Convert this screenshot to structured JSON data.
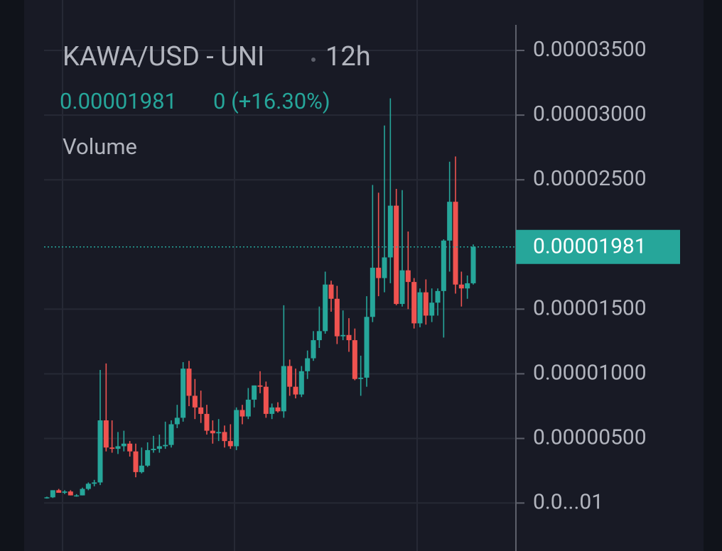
{
  "chart_data": {
    "type": "candlestick",
    "title": "KAWA/USD - UNI",
    "interval": "12h",
    "last_price": 1.981e-05,
    "change": "0 (+16.30%)",
    "volume_label": "Volume",
    "up_color": "#26a69a",
    "down_color": "#ef5350",
    "ylim": [
      -3.7e-06,
      3.89e-05
    ],
    "yticks": [
      {
        "value": 1e-08,
        "label": "0.0...01"
      },
      {
        "value": 5e-06,
        "label": "0.00000500"
      },
      {
        "value": 1e-05,
        "label": "0.00001000"
      },
      {
        "value": 1.5e-05,
        "label": "0.00001500"
      },
      {
        "value": 2.5e-05,
        "label": "0.00002500"
      },
      {
        "value": 3e-05,
        "label": "0.00003000"
      },
      {
        "value": 3.5e-05,
        "label": "0.00003500"
      }
    ],
    "grid": true,
    "open": [
      4e-07,
      4.5e-07,
      1e-06,
      8e-07,
      9e-07,
      6e-07,
      6e-07,
      1.1e-06,
      1.5e-06,
      1.6e-06,
      6.4e-06,
      4.3e-06,
      4.2e-06,
      4.4e-06,
      4.6e-06,
      4e-06,
      2.4e-06,
      2.9e-06,
      4.1e-06,
      4.2e-06,
      4.4e-06,
      4.5e-06,
      6.1e-06,
      6.6e-06,
      1.04e-05,
      8.3e-06,
      7.4e-06,
      6.9e-06,
      5.6e-06,
      5.4e-06,
      5.5e-06,
      4.8e-06,
      4.4e-06,
      7.2e-06,
      6.7e-06,
      8e-06,
      9.1e-06,
      9e-06,
      6.9e-06,
      7.4e-06,
      7.1e-06,
      1.06e-05,
      9e-06,
      8.4e-06,
      1.02e-05,
      1.12e-05,
      1.26e-05,
      1.33e-05,
      1.69e-05,
      1.58e-05,
      1.29e-05,
      1.3e-05,
      1.26e-05,
      9.6e-06,
      9.7e-06,
      1.44e-05,
      1.82e-05,
      1.74e-05,
      1.9e-05,
      2.3e-05,
      1.54e-05,
      1.8e-05,
      1.71e-05,
      1.39e-05,
      1.63e-05,
      1.45e-05,
      1.55e-05,
      1.64e-05,
      2.03e-05,
      2.33e-05,
      1.69e-05,
      1.66e-05,
      1.7e-05
    ],
    "high": [
      5e-07,
      1e-06,
      1.1e-06,
      1e-06,
      1e-06,
      7e-07,
      1.2e-06,
      1.6e-06,
      1.8e-06,
      1.03e-05,
      1.08e-05,
      6.4e-06,
      5.5e-06,
      5.6e-06,
      4.8e-06,
      4.6e-06,
      4.3e-06,
      4.7e-06,
      5.2e-06,
      5.3e-06,
      6.3e-06,
      6.4e-06,
      7.6e-06,
      1.09e-05,
      1.1e-05,
      9.6e-06,
      8.7e-06,
      7.6e-06,
      6.4e-06,
      6.5e-06,
      6e-06,
      6.1e-06,
      7.4e-06,
      7.6e-06,
      8.9e-06,
      9.1e-06,
      1.02e-05,
      9.4e-06,
      7.7e-06,
      7.8e-06,
      1.53e-05,
      1.11e-05,
      1.04e-05,
      1.06e-05,
      1.18e-05,
      1.33e-05,
      1.52e-05,
      1.79e-05,
      1.72e-05,
      1.68e-05,
      1.49e-05,
      1.43e-05,
      1.35e-05,
      1.14e-05,
      1.6e-05,
      2.46e-05,
      2.4e-05,
      2.92e-05,
      3.13e-05,
      2.43e-05,
      2.42e-05,
      2.1e-05,
      1.74e-05,
      1.66e-05,
      1.73e-05,
      1.66e-05,
      1.66e-05,
      2.04e-05,
      2.64e-05,
      2.68e-05,
      1.79e-05,
      1.76e-05,
      2e-05
    ],
    "low": [
      3.5e-07,
      4e-07,
      8e-07,
      7e-07,
      6e-07,
      5e-07,
      6e-07,
      1e-06,
      1.3e-06,
      1.4e-06,
      4e-06,
      3.9e-06,
      3.8e-06,
      4e-06,
      3.6e-06,
      2e-06,
      2.3e-06,
      2.8e-06,
      3.9e-06,
      3.9e-06,
      4.2e-06,
      4.3e-06,
      5.8e-06,
      6.3e-06,
      7.5e-06,
      6.5e-06,
      6.2e-06,
      5.3e-06,
      4.6e-06,
      4.8e-06,
      4.3e-06,
      4.2e-06,
      4.1e-06,
      6.1e-06,
      6.5e-06,
      7.4e-06,
      8.5e-06,
      6.6e-06,
      6.5e-06,
      7e-06,
      6.6e-06,
      8.3e-06,
      8.1e-06,
      8.2e-06,
      9.6e-06,
      1.1e-05,
      1.2e-05,
      1.31e-05,
      1.48e-05,
      1.23e-05,
      1.26e-05,
      1.17e-05,
      9.5e-06,
      8.3e-06,
      9e-06,
      1.4e-05,
      1.6e-05,
      1.63e-05,
      1.7e-05,
      1.53e-05,
      1.52e-05,
      1.5e-05,
      1.35e-05,
      1.36e-05,
      1.38e-05,
      1.4e-05,
      1.45e-05,
      1.28e-05,
      1.79e-05,
      1.62e-05,
      1.52e-05,
      1.58e-05,
      1.69e-05
    ],
    "close": [
      4.5e-07,
      1e-06,
      8e-07,
      9e-07,
      6e-07,
      6e-07,
      1.1e-06,
      1.5e-06,
      1.6e-06,
      6.4e-06,
      4.3e-06,
      4.2e-06,
      4.4e-06,
      4.6e-06,
      4e-06,
      2.4e-06,
      2.9e-06,
      4.1e-06,
      4.2e-06,
      4.4e-06,
      4.5e-06,
      6.1e-06,
      6.6e-06,
      1.04e-05,
      8.3e-06,
      7.4e-06,
      6.9e-06,
      5.6e-06,
      5.4e-06,
      5.5e-06,
      4.8e-06,
      4.4e-06,
      7.2e-06,
      6.7e-06,
      8e-06,
      9.1e-06,
      9e-06,
      6.9e-06,
      7.4e-06,
      7.1e-06,
      1.06e-05,
      9e-06,
      8.4e-06,
      1.02e-05,
      1.12e-05,
      1.26e-05,
      1.33e-05,
      1.69e-05,
      1.58e-05,
      1.29e-05,
      1.3e-05,
      1.26e-05,
      9.6e-06,
      9.7e-06,
      1.44e-05,
      1.82e-05,
      1.74e-05,
      1.9e-05,
      2.3e-05,
      1.54e-05,
      1.8e-05,
      1.71e-05,
      1.39e-05,
      1.63e-05,
      1.45e-05,
      1.55e-05,
      1.64e-05,
      2.03e-05,
      2.33e-05,
      1.69e-05,
      1.66e-05,
      1.7e-05,
      1.981e-05
    ]
  }
}
